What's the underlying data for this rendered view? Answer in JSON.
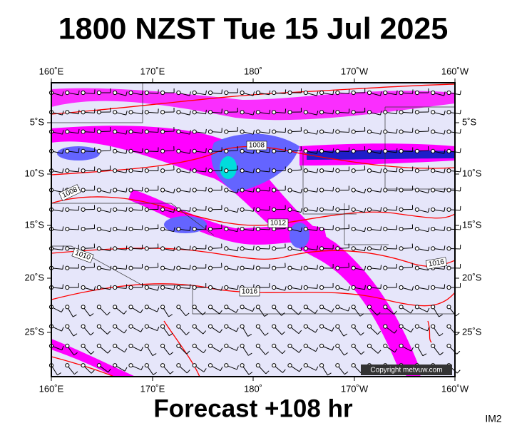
{
  "header": {
    "title": "1800 NZST Tue 15 Jul 2025"
  },
  "axes": {
    "longitudes": [
      "160˚E",
      "170˚E",
      "180˚",
      "170˚W",
      "160˚W"
    ],
    "latitudes": [
      "5˚S",
      "10˚S",
      "15˚S",
      "20˚S",
      "25˚S"
    ]
  },
  "isobar_labels": [
    "1008",
    "1008",
    "1012",
    "1010",
    "1016",
    "1016"
  ],
  "copyright": "Copyright metvuw.com",
  "footer": {
    "forecast": "Forecast +108 hr",
    "code": "IM2"
  }
}
